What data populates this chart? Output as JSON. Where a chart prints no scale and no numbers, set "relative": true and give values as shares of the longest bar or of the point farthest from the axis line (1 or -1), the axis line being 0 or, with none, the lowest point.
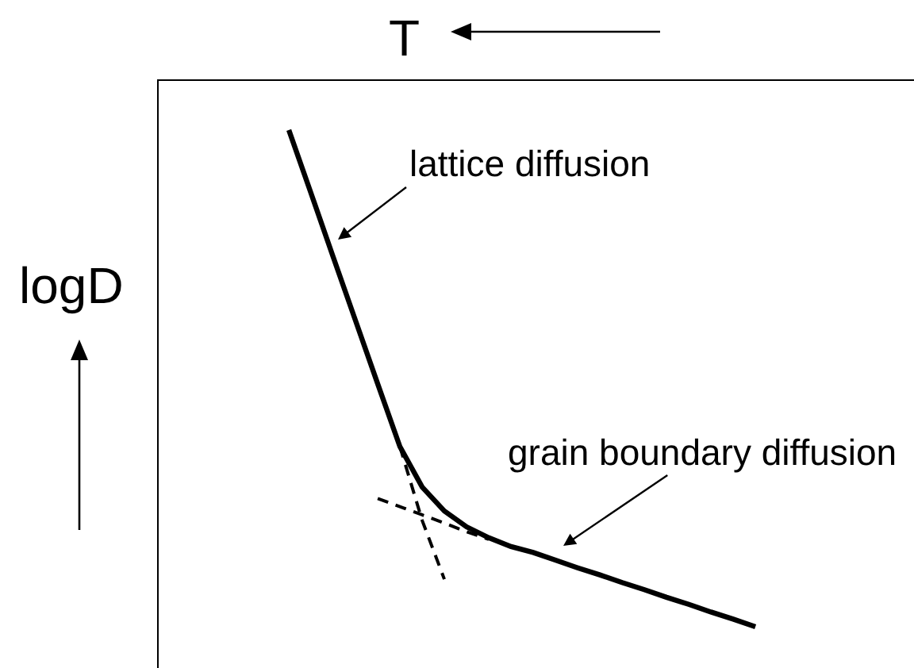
{
  "chart_data": {
    "type": "line",
    "xlabel": "T",
    "ylabel": "logD",
    "relative": true,
    "categories": [
      null,
      null,
      null,
      null,
      null,
      null,
      null,
      null,
      null,
      null,
      null,
      null,
      null,
      null,
      null,
      null,
      null,
      null,
      null,
      null,
      null,
      null
    ],
    "series": [
      {
        "color": "#000000",
        "line_style": "solid",
        "values": [
          -0.09,
          -0.206,
          -0.323,
          -0.439,
          -0.555,
          -0.67,
          -0.744,
          -0.788,
          -0.817,
          -0.837,
          -0.853,
          -0.864,
          -0.878,
          -0.892,
          -0.905,
          -0.919,
          -0.932,
          -0.946,
          -0.959,
          -0.973,
          -0.986,
          -1
        ]
      },
      {
        "color": "#000000",
        "line_style": "dashed",
        "values": [
          null,
          null,
          null,
          null,
          null,
          -0.67,
          -0.805,
          -0.913,
          null,
          null,
          null,
          null,
          null,
          null,
          null,
          null,
          null,
          null,
          null,
          null,
          null,
          null
        ]
      },
      {
        "color": "#000000",
        "line_style": "dashed",
        "values": [
          null,
          null,
          null,
          null,
          -0.765,
          -0.78,
          -0.795,
          -0.81,
          -0.826,
          -0.84,
          null,
          null,
          null,
          null,
          null,
          null,
          null,
          null,
          null,
          null,
          null,
          null
        ]
      }
    ],
    "annotations": [
      "lattice diffusion",
      "grain boundary diffusion"
    ]
  }
}
